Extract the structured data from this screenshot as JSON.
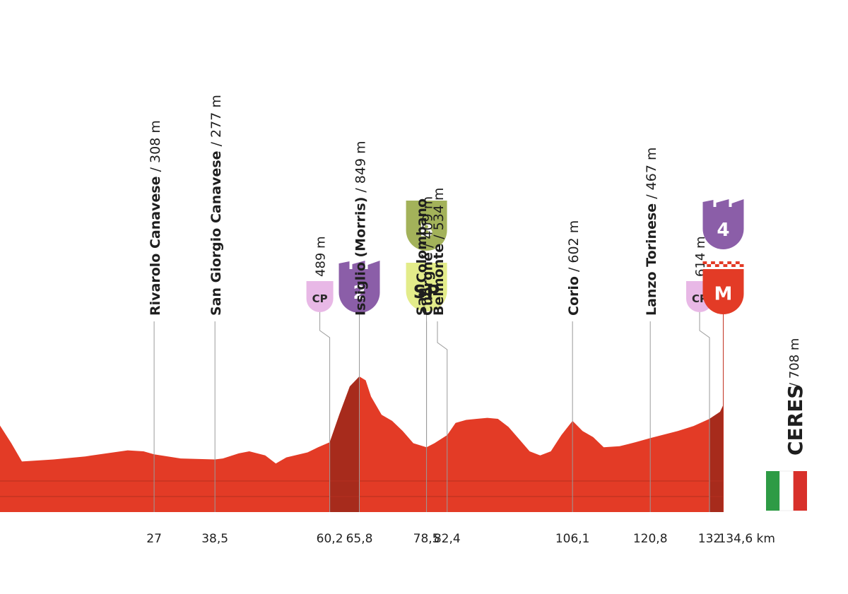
{
  "chart_data": {
    "type": "area",
    "x_unit": "km",
    "colors": {
      "profile": "#e33b26",
      "climb": "#a72b1c",
      "leader": "#9a9a9a",
      "km_text": "#222222",
      "cp": "#e8b8e6",
      "cat_2": "#8b5ea8",
      "cat_4": "#8b5ea8",
      "bonus": "#a3b25a",
      "sprint": "#e3ec8a",
      "finish": "#e33b26"
    },
    "profile": [
      [
        0,
        420
      ],
      [
        2,
        330
      ],
      [
        8,
        340
      ],
      [
        14,
        355
      ],
      [
        18,
        370
      ],
      [
        22,
        385
      ],
      [
        25,
        380
      ],
      [
        27,
        365
      ],
      [
        32,
        345
      ],
      [
        38.5,
        340
      ],
      [
        40,
        345
      ],
      [
        43,
        370
      ],
      [
        45,
        380
      ],
      [
        48,
        360
      ],
      [
        50,
        320
      ],
      [
        52,
        350
      ],
      [
        56,
        375
      ],
      [
        58,
        400
      ],
      [
        60.2,
        425
      ],
      [
        62,
        560
      ],
      [
        64,
        700
      ],
      [
        65.8,
        749
      ],
      [
        67,
        730
      ],
      [
        68,
        650
      ],
      [
        70,
        560
      ],
      [
        72,
        530
      ],
      [
        74,
        480
      ],
      [
        76,
        420
      ],
      [
        78.5,
        400
      ],
      [
        80,
        420
      ],
      [
        82.4,
        460
      ],
      [
        84,
        520
      ],
      [
        86,
        535
      ],
      [
        88,
        540
      ],
      [
        90,
        545
      ],
      [
        92,
        540
      ],
      [
        94,
        500
      ],
      [
        96,
        440
      ],
      [
        98,
        380
      ],
      [
        100,
        360
      ],
      [
        102,
        380
      ],
      [
        104,
        460
      ],
      [
        106.1,
        530
      ],
      [
        108,
        480
      ],
      [
        110,
        450
      ],
      [
        112,
        400
      ],
      [
        115,
        405
      ],
      [
        118,
        425
      ],
      [
        120.8,
        445
      ],
      [
        123,
        460
      ],
      [
        126,
        480
      ],
      [
        129,
        505
      ],
      [
        132,
        540
      ],
      [
        134,
        575
      ],
      [
        134.6,
        608
      ]
    ],
    "climbs": [
      {
        "from": 60.2,
        "to": 65.8
      },
      {
        "from": 132,
        "to": 134.6
      }
    ],
    "km_labels": [
      {
        "km": 27,
        "label": "27"
      },
      {
        "km": 38.5,
        "label": "38,5"
      },
      {
        "km": 60.2,
        "label": "60,2"
      },
      {
        "km": 65.8,
        "label": "65,8"
      },
      {
        "km": 78.5,
        "label": "78,5"
      },
      {
        "km": 82.4,
        "label": "82,4"
      },
      {
        "km": 106.1,
        "label": "106,1"
      },
      {
        "km": 120.8,
        "label": "120,8"
      },
      {
        "km": 132,
        "label": "132"
      },
      {
        "km": 134.6,
        "label": "134,6 km"
      }
    ],
    "locations": [
      {
        "km": 27,
        "name": "Rivarolo Canavese",
        "alt": "308 m"
      },
      {
        "km": 38.5,
        "name": "San Giorgio Canavese",
        "alt": "277 m"
      },
      {
        "km": 65.8,
        "name": "Issiglio (Morris)",
        "alt": "849 m"
      },
      {
        "km": 78.5,
        "name": "Cuorgné",
        "alt": "409 m"
      },
      {
        "km": 82.4,
        "name": "San Colombano",
        "name2": "Belmonte",
        "alt": "534 m"
      },
      {
        "km": 106.1,
        "name": "Corio",
        "alt": "602 m"
      },
      {
        "km": 120.8,
        "name": "Lanzo Torinese",
        "alt": "467 m"
      }
    ],
    "badges": [
      {
        "km": 60.2,
        "type": "cp",
        "label": "CP",
        "alt": "489 m"
      },
      {
        "km": 65.8,
        "type": "cat_2",
        "label": "2"
      },
      {
        "km": 78.5,
        "type": "bonus",
        "label": "B"
      },
      {
        "km": 78.5,
        "type": "sprint",
        "label": "SP"
      },
      {
        "km": 132,
        "type": "cp",
        "label": "CP",
        "alt": "614 m"
      },
      {
        "km": 134.6,
        "type": "cat_4",
        "label": "4"
      },
      {
        "km": 134.6,
        "type": "finish",
        "label": "M"
      }
    ],
    "finish": {
      "name": "CERES",
      "alt": "708 m"
    },
    "flag": {
      "colors": [
        "#2e9b45",
        "#ffffff",
        "#d8302a"
      ]
    }
  }
}
